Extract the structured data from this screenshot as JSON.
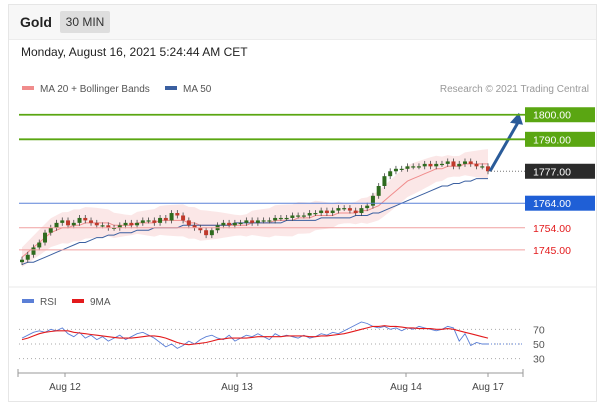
{
  "header": {
    "title": "Gold",
    "interval": "30 MIN",
    "datetime": "Monday, August 16, 2021 5:24:44 AM CET"
  },
  "legend": {
    "top": [
      {
        "label": "MA 20 + Bollinger Bands",
        "color": "#f08c8c"
      },
      {
        "label": "MA 50",
        "color": "#3a5fa0"
      }
    ],
    "bottom": [
      {
        "label": "RSI",
        "color": "#5b7fd6"
      },
      {
        "label": "9MA",
        "color": "#e31a1c"
      }
    ]
  },
  "copyright": "Research © 2021 Trading Central",
  "chart_data": [
    {
      "type": "candlestick",
      "title": "Gold",
      "x_ticks": [
        "Aug 12",
        "Aug 13",
        "Aug 14",
        "Aug 17"
      ],
      "ylim": [
        1736,
        1806
      ],
      "levels": [
        {
          "value": 1800,
          "label": "1800.00",
          "kind": "resistance",
          "color": "#5aa612"
        },
        {
          "value": 1790,
          "label": "1790.00",
          "kind": "resistance",
          "color": "#5aa612"
        },
        {
          "value": 1777,
          "label": "1777.00",
          "kind": "last",
          "color": "#2b2b2b"
        },
        {
          "value": 1764,
          "label": "1764.00",
          "kind": "pivot",
          "color": "#1f5fd6"
        },
        {
          "value": 1754,
          "label": "1754.00",
          "kind": "support",
          "color": "#e31a1c"
        },
        {
          "value": 1745,
          "label": "1745.00",
          "kind": "support",
          "color": "#e31a1c"
        }
      ],
      "series": [
        {
          "name": "Close",
          "values": [
            1741,
            1743,
            1746,
            1748,
            1752,
            1754,
            1756,
            1757,
            1755,
            1756,
            1758,
            1757,
            1756,
            1755,
            1755,
            1754,
            1754,
            1755,
            1756,
            1755,
            1756,
            1757,
            1757,
            1756,
            1758,
            1757,
            1760,
            1759,
            1757,
            1755,
            1754,
            1753,
            1751,
            1753,
            1755,
            1756,
            1755,
            1756,
            1756,
            1757,
            1756,
            1757,
            1757,
            1757,
            1758,
            1758,
            1758,
            1759,
            1759,
            1759,
            1760,
            1760,
            1761,
            1760,
            1761,
            1762,
            1762,
            1761,
            1760,
            1762,
            1763,
            1767,
            1771,
            1775,
            1777,
            1778,
            1778,
            1779,
            1779,
            1779,
            1780,
            1779,
            1780,
            1780,
            1781,
            1779,
            1780,
            1781,
            1780,
            1779,
            1779,
            1777
          ]
        },
        {
          "name": "MA 20",
          "values": [
            1742,
            1744,
            1746,
            1748,
            1750,
            1752,
            1753,
            1754,
            1754,
            1755,
            1755,
            1756,
            1756,
            1756,
            1756,
            1756,
            1755,
            1755,
            1755,
            1755,
            1756,
            1756,
            1756,
            1756,
            1757,
            1757,
            1757,
            1757,
            1757,
            1756,
            1756,
            1755,
            1755,
            1755,
            1755,
            1755,
            1755,
            1755,
            1755,
            1755,
            1756,
            1756,
            1756,
            1756,
            1757,
            1757,
            1757,
            1757,
            1758,
            1758,
            1758,
            1759,
            1759,
            1759,
            1759,
            1760,
            1760,
            1760,
            1760,
            1761,
            1761,
            1762,
            1763,
            1765,
            1767,
            1769,
            1771,
            1773,
            1774,
            1775,
            1776,
            1777,
            1778,
            1778,
            1779,
            1779,
            1779,
            1780,
            1780,
            1780,
            1780,
            1780
          ]
        },
        {
          "name": "MA 50",
          "values": [
            1739,
            1740,
            1740,
            1741,
            1742,
            1743,
            1744,
            1745,
            1746,
            1747,
            1748,
            1748,
            1749,
            1750,
            1750,
            1751,
            1751,
            1752,
            1752,
            1752,
            1753,
            1753,
            1753,
            1754,
            1754,
            1754,
            1754,
            1754,
            1755,
            1755,
            1755,
            1755,
            1755,
            1755,
            1755,
            1755,
            1755,
            1756,
            1756,
            1756,
            1756,
            1756,
            1756,
            1756,
            1756,
            1756,
            1757,
            1757,
            1757,
            1757,
            1757,
            1757,
            1758,
            1758,
            1758,
            1758,
            1758,
            1758,
            1759,
            1759,
            1759,
            1760,
            1760,
            1761,
            1762,
            1763,
            1764,
            1765,
            1766,
            1767,
            1768,
            1769,
            1770,
            1771,
            1771,
            1772,
            1772,
            1773,
            1773,
            1774,
            1774,
            1774
          ]
        }
      ]
    },
    {
      "type": "line",
      "title": "RSI",
      "ylim": [
        20,
        80
      ],
      "y_ticks": [
        70,
        50,
        30
      ],
      "series": [
        {
          "name": "RSI",
          "values": [
            58,
            62,
            66,
            68,
            66,
            70,
            68,
            72,
            64,
            60,
            66,
            58,
            62,
            56,
            60,
            54,
            58,
            62,
            56,
            60,
            64,
            66,
            62,
            58,
            52,
            46,
            50,
            44,
            48,
            54,
            50,
            56,
            60,
            62,
            58,
            56,
            62,
            54,
            58,
            62,
            60,
            64,
            60,
            56,
            64,
            60,
            62,
            60,
            58,
            62,
            58,
            60,
            64,
            62,
            66,
            64,
            68,
            72,
            76,
            80,
            78,
            74,
            72,
            74,
            70,
            72,
            68,
            72,
            70,
            74,
            72,
            70,
            68,
            70,
            74,
            72,
            54,
            64,
            48,
            52,
            50,
            50
          ]
        },
        {
          "name": "9MA",
          "values": [
            56,
            58,
            61,
            64,
            66,
            67,
            68,
            68,
            68,
            66,
            65,
            64,
            63,
            62,
            61,
            60,
            59,
            58,
            58,
            58,
            59,
            60,
            61,
            61,
            60,
            58,
            55,
            52,
            50,
            49,
            50,
            51,
            52,
            54,
            56,
            57,
            58,
            58,
            58,
            58,
            59,
            60,
            60,
            60,
            60,
            60,
            61,
            61,
            61,
            61,
            60,
            60,
            61,
            61,
            62,
            63,
            64,
            66,
            68,
            70,
            72,
            74,
            74,
            75,
            74,
            74,
            73,
            72,
            72,
            71,
            71,
            71,
            70,
            70,
            71,
            70,
            68,
            66,
            64,
            62,
            60,
            58
          ]
        }
      ]
    }
  ]
}
